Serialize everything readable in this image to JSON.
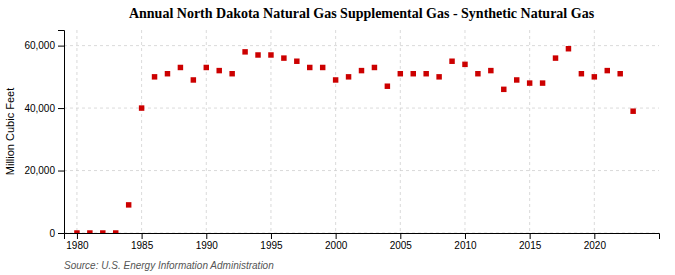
{
  "chart_data": {
    "type": "scatter",
    "title": "Annual North Dakota Natural Gas Supplemental Gas - Synthetic Natural Gas",
    "ylabel": "Million Cubic Feet",
    "source": "Source: U.S. Energy Information Administration",
    "x": [
      1980,
      1981,
      1982,
      1983,
      1984,
      1985,
      1986,
      1987,
      1988,
      1989,
      1990,
      1991,
      1992,
      1993,
      1994,
      1995,
      1996,
      1997,
      1998,
      1999,
      2000,
      2001,
      2002,
      2003,
      2004,
      2005,
      2006,
      2007,
      2008,
      2009,
      2010,
      2011,
      2012,
      2013,
      2014,
      2015,
      2016,
      2017,
      2018,
      2019,
      2020,
      2021,
      2022,
      2023
    ],
    "values": [
      0,
      0,
      0,
      0,
      9000,
      40000,
      50000,
      51000,
      53000,
      49000,
      53000,
      52000,
      51000,
      58000,
      57000,
      57000,
      56000,
      55000,
      53000,
      53000,
      49000,
      50000,
      52000,
      53000,
      47000,
      51000,
      51000,
      51000,
      50000,
      55000,
      54000,
      51000,
      52000,
      46000,
      49000,
      48000,
      48000,
      56000,
      59000,
      51000,
      50000,
      52000,
      51000,
      39000
    ],
    "color": "#cc0000",
    "marker": "square",
    "xlim": [
      1979,
      2025
    ],
    "xticks": [
      1980,
      1985,
      1990,
      1995,
      2000,
      2005,
      2010,
      2015,
      2020
    ],
    "ylim": [
      0,
      65000
    ],
    "yticks": [
      0,
      {
        "value": 20000,
        "label": "20,000"
      },
      {
        "value": 40000,
        "label": "40,000"
      },
      {
        "value": 60000,
        "label": "60,000"
      }
    ],
    "grid": true
  }
}
